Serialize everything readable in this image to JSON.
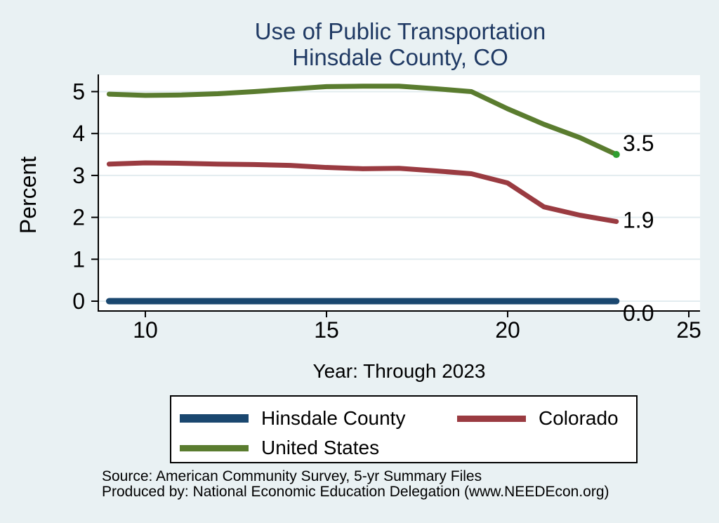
{
  "title": {
    "line1": "Use of Public Transportation",
    "line2": "Hinsdale County, CO"
  },
  "axes": {
    "y_label": "Percent",
    "x_label": "Year: Through 2023"
  },
  "chart_data": {
    "type": "line",
    "title": "Use of Public Transportation — Hinsdale County, CO",
    "xlabel": "Year: Through 2023",
    "ylabel": "Percent",
    "x": [
      9,
      10,
      11,
      12,
      13,
      14,
      15,
      16,
      17,
      18,
      19,
      20,
      21,
      22,
      23
    ],
    "x_ticks": [
      10,
      15,
      20,
      25
    ],
    "y_ticks": [
      0,
      1,
      2,
      3,
      4,
      5
    ],
    "xlim": [
      8.7,
      25.3
    ],
    "ylim": [
      -0.2,
      5.4
    ],
    "grid": "horizontal",
    "legend_position": "bottom",
    "series": [
      {
        "name": "Hinsdale County",
        "color": "#1a476f",
        "end_label": "0.0",
        "values": [
          0,
          0,
          0,
          0,
          0,
          0,
          0,
          0,
          0,
          0,
          0,
          0,
          0,
          0,
          0
        ]
      },
      {
        "name": "Colorado",
        "color": "#9a3b41",
        "end_label": "1.9",
        "values": [
          3.27,
          3.3,
          3.29,
          3.27,
          3.26,
          3.24,
          3.19,
          3.16,
          3.17,
          3.11,
          3.04,
          2.82,
          2.25,
          2.05,
          1.9
        ]
      },
      {
        "name": "United States",
        "color": "#5a7c2f",
        "end_label": "3.5",
        "end_marker_color": "#2f9e2f",
        "values": [
          4.94,
          4.91,
          4.92,
          4.95,
          5.0,
          5.06,
          5.12,
          5.13,
          5.13,
          5.07,
          5.0,
          4.59,
          4.22,
          3.9,
          3.5
        ]
      }
    ]
  },
  "legend": {
    "items": [
      {
        "label": "Hinsdale County"
      },
      {
        "label": "Colorado"
      },
      {
        "label": "United States"
      }
    ]
  },
  "source": {
    "line1": "Source: American Community Survey, 5-yr Summary Files",
    "line2": "Produced by: National Economic Education Delegation (www.NEEDEcon.org)"
  }
}
